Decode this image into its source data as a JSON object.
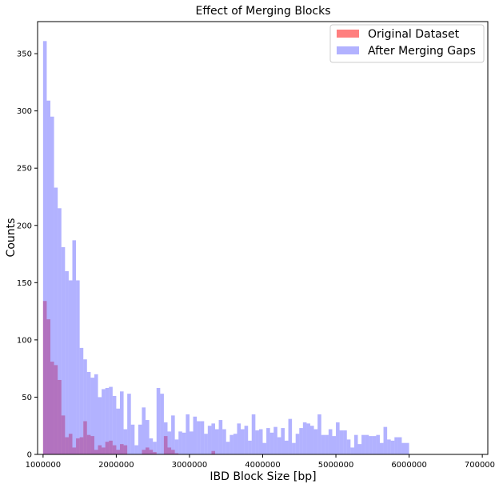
{
  "chart_data": {
    "type": "bar",
    "title": "Effect of Merging Blocks",
    "xlabel": "IBD Block Size [bp]",
    "ylabel": "Counts",
    "xlim": [
      925000,
      7075000
    ],
    "ylim": [
      0,
      378
    ],
    "x_ticks": [
      1000000,
      2000000,
      3000000,
      4000000,
      5000000,
      6000000,
      7000000
    ],
    "x_tick_labels": [
      "1000000",
      "2000000",
      "3000000",
      "4000000",
      "5000000",
      "6000000",
      "7000000"
    ],
    "y_ticks": [
      0,
      50,
      100,
      150,
      200,
      250,
      300,
      350
    ],
    "y_tick_labels": [
      "0",
      "50",
      "100",
      "150",
      "200",
      "250",
      "300",
      "350"
    ],
    "bin_start": 1000000,
    "bin_width": 50000,
    "legend_position": "top-right",
    "grid": false,
    "series": [
      {
        "name": "Original Dataset",
        "color": "#ff0000",
        "opacity": 0.5,
        "values": [
          134,
          118,
          81,
          78,
          65,
          34,
          15,
          18,
          6,
          14,
          15,
          29,
          17,
          16,
          4,
          8,
          6,
          11,
          12,
          8,
          4,
          9,
          8,
          0,
          0,
          0,
          0,
          4,
          6,
          4,
          2,
          0,
          0,
          16,
          6,
          4,
          1,
          0,
          0,
          0,
          0,
          0,
          0,
          0,
          0,
          0,
          3,
          0,
          0,
          0,
          0,
          0,
          0,
          0,
          0,
          0,
          0,
          0,
          0,
          0,
          0,
          0,
          0,
          0,
          0,
          0,
          0,
          0,
          0,
          0,
          0,
          0,
          0,
          0,
          0,
          0,
          0,
          0,
          0,
          0,
          0,
          0,
          0,
          0,
          0,
          0,
          0,
          0,
          0,
          0,
          0,
          0,
          0,
          0,
          0,
          0,
          0,
          0,
          0,
          0
        ]
      },
      {
        "name": "After Merging Gaps",
        "color": "#6666ff",
        "opacity": 0.5,
        "values": [
          361,
          309,
          295,
          233,
          215,
          181,
          160,
          152,
          187,
          152,
          93,
          83,
          72,
          67,
          70,
          50,
          57,
          58,
          59,
          51,
          40,
          55,
          22,
          53,
          26,
          8,
          26,
          41,
          30,
          14,
          11,
          58,
          53,
          28,
          20,
          34,
          13,
          20,
          19,
          35,
          20,
          33,
          29,
          29,
          18,
          25,
          27,
          22,
          30,
          22,
          11,
          17,
          18,
          27,
          22,
          25,
          12,
          35,
          21,
          22,
          10,
          23,
          19,
          24,
          15,
          23,
          12,
          31,
          10,
          18,
          23,
          28,
          27,
          25,
          22,
          35,
          17,
          17,
          22,
          16,
          28,
          21,
          21,
          13,
          6,
          17,
          9,
          17,
          17,
          16,
          16,
          17,
          10,
          24,
          13,
          12,
          15,
          15,
          10,
          10
        ]
      }
    ]
  }
}
